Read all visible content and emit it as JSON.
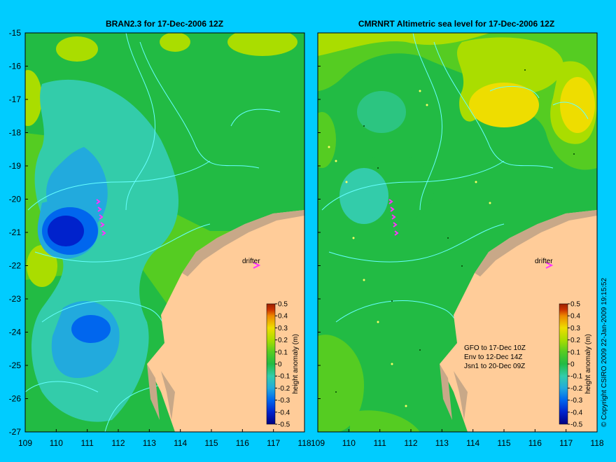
{
  "left_panel": {
    "title": "BRAN2.3 for 17-Dec-2006 12Z",
    "drifter_label": "drifter",
    "colorbar_label": "height anomaly (m)"
  },
  "right_panel": {
    "title": "CMRNRT Altimetric sea level  for 17-Dec-2006 12Z",
    "drifter_label": "drifter",
    "colorbar_label": "height anomaly (m)",
    "satellite_lines": [
      "GFO to 17-Dec 10Z",
      "Env to 12-Dec 14Z",
      "Jsn1 to 20-Dec 09Z"
    ]
  },
  "axes": {
    "lat_ticks": [
      "-15",
      "-16",
      "-17",
      "-18",
      "-19",
      "-20",
      "-21",
      "-22",
      "-23",
      "-24",
      "-25",
      "-26",
      "-27"
    ],
    "lon_ticks": [
      "109",
      "110",
      "111",
      "112",
      "113",
      "114",
      "115",
      "116",
      "117",
      "118"
    ],
    "lon_range": [
      109,
      118
    ],
    "lat_range": [
      -15,
      -27
    ]
  },
  "colorbar": {
    "ticks": [
      "0.5",
      "0.4",
      "0.3",
      "0.2",
      "0.1",
      "0",
      "-0.1",
      "-0.2",
      "-0.3",
      "-0.4",
      "-0.5"
    ],
    "range": [
      -0.5,
      0.5
    ],
    "colors": [
      "#000080",
      "#0022cc",
      "#0066ee",
      "#22aadd",
      "#33ccaa",
      "#22bb44",
      "#55cc22",
      "#aadd00",
      "#eedd00",
      "#ee8800",
      "#cc3300",
      "#992200"
    ]
  },
  "copyright": "© Copyright CSIRO 2009  22-Jan-2009 19:15:52",
  "colors": {
    "background": "#00ccff",
    "land": "#ffcc99",
    "coast_gray": "#c8a888",
    "contour": "#66ffff",
    "drifter": "#ff33ff"
  }
}
